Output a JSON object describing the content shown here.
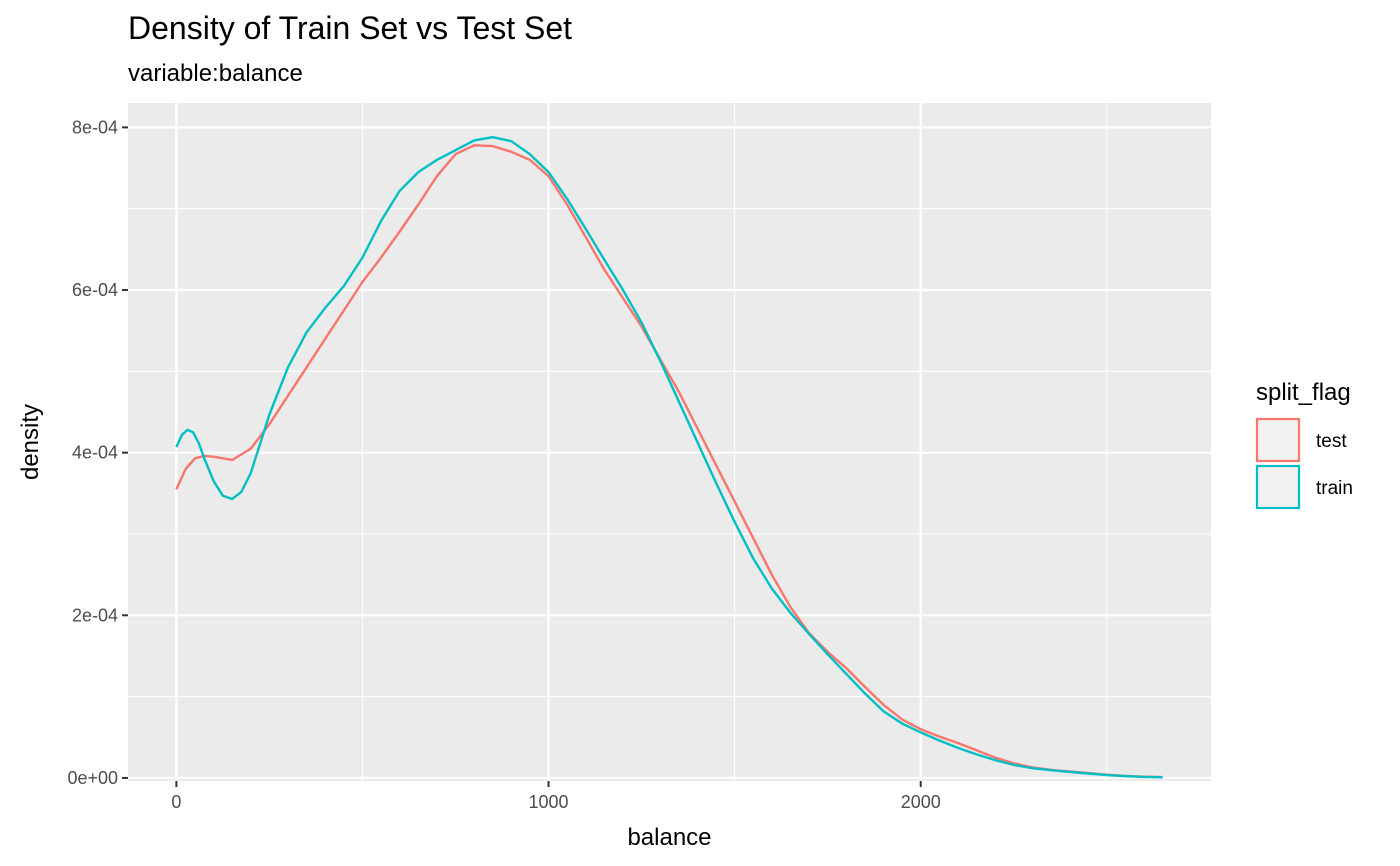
{
  "chart_data": {
    "type": "line",
    "title": "Density of Train Set vs Test Set",
    "subtitle": "variable:balance",
    "xlabel": "balance",
    "ylabel": "density",
    "xlim": [
      -130,
      2780
    ],
    "ylim": [
      -3.75e-06,
      0.00083
    ],
    "x_ticks": [
      0,
      1000,
      2000
    ],
    "x_tick_labels": [
      "0",
      "1000",
      "2000"
    ],
    "y_ticks": [
      0,
      0.0002,
      0.0004,
      0.0006,
      0.0008
    ],
    "y_tick_labels": [
      "0e+00",
      "2e-04",
      "4e-04",
      "6e-04",
      "8e-04"
    ],
    "grid": true,
    "legend": {
      "title": "split_flag",
      "position": "right"
    },
    "colors": {
      "panel": "#ebebeb",
      "grid": "#ffffff",
      "test": "#f8766d",
      "train": "#00bfc4"
    },
    "series": [
      {
        "name": "test",
        "x": [
          0,
          25,
          50,
          75,
          100,
          150,
          200,
          250,
          300,
          350,
          400,
          450,
          500,
          550,
          600,
          650,
          700,
          750,
          800,
          850,
          900,
          950,
          1000,
          1050,
          1100,
          1150,
          1200,
          1250,
          1300,
          1350,
          1400,
          1450,
          1500,
          1550,
          1600,
          1650,
          1700,
          1750,
          1800,
          1850,
          1900,
          1950,
          2000,
          2050,
          2100,
          2150,
          2200,
          2250,
          2300,
          2350,
          2400,
          2450,
          2500,
          2550,
          2600,
          2650
        ],
        "values": [
          0.000355,
          0.00038,
          0.000393,
          0.000396,
          0.000395,
          0.000391,
          0.000405,
          0.000435,
          0.00047,
          0.000505,
          0.00054,
          0.000575,
          0.00061,
          0.00064,
          0.000672,
          0.000705,
          0.00074,
          0.000767,
          0.000778,
          0.000777,
          0.00077,
          0.00076,
          0.00074,
          0.000705,
          0.000665,
          0.000625,
          0.00059,
          0.000555,
          0.000515,
          0.000475,
          0.00043,
          0.000385,
          0.00034,
          0.000295,
          0.00025,
          0.00021,
          0.000178,
          0.000155,
          0.000135,
          0.000112,
          9e-05,
          7.2e-05,
          6e-05,
          5.1e-05,
          4.3e-05,
          3.4e-05,
          2.5e-05,
          1.8e-05,
          1.3e-05,
          1e-05,
          8e-06,
          6e-06,
          4e-06,
          2.5e-06,
          1.5e-06,
          1e-06
        ]
      },
      {
        "name": "train",
        "x": [
          0,
          15,
          30,
          45,
          60,
          75,
          100,
          125,
          150,
          175,
          200,
          250,
          300,
          350,
          400,
          450,
          500,
          550,
          600,
          650,
          700,
          750,
          800,
          850,
          900,
          950,
          1000,
          1050,
          1100,
          1150,
          1200,
          1250,
          1300,
          1350,
          1400,
          1450,
          1500,
          1550,
          1600,
          1650,
          1700,
          1750,
          1800,
          1850,
          1900,
          1950,
          2000,
          2050,
          2100,
          2150,
          2200,
          2250,
          2300,
          2350,
          2400,
          2450,
          2500,
          2550,
          2600,
          2650
        ],
        "values": [
          0.000407,
          0.000422,
          0.000428,
          0.000425,
          0.000412,
          0.000393,
          0.000365,
          0.000347,
          0.000343,
          0.000352,
          0.000375,
          0.000447,
          0.000505,
          0.000548,
          0.000578,
          0.000605,
          0.00064,
          0.000685,
          0.000722,
          0.000745,
          0.00076,
          0.000772,
          0.000784,
          0.000788,
          0.000783,
          0.000767,
          0.000745,
          0.000712,
          0.000675,
          0.000637,
          0.0006,
          0.00056,
          0.000513,
          0.000463,
          0.000413,
          0.000363,
          0.000315,
          0.00027,
          0.000233,
          0.000203,
          0.000177,
          0.000152,
          0.000128,
          0.000104,
          8.2e-05,
          6.7e-05,
          5.6e-05,
          4.6e-05,
          3.7e-05,
          2.9e-05,
          2.2e-05,
          1.6e-05,
          1.2e-05,
          9.5e-06,
          7.5e-06,
          5.5e-06,
          3.5e-06,
          2.2e-06,
          1.3e-06,
          8e-07
        ]
      }
    ]
  }
}
